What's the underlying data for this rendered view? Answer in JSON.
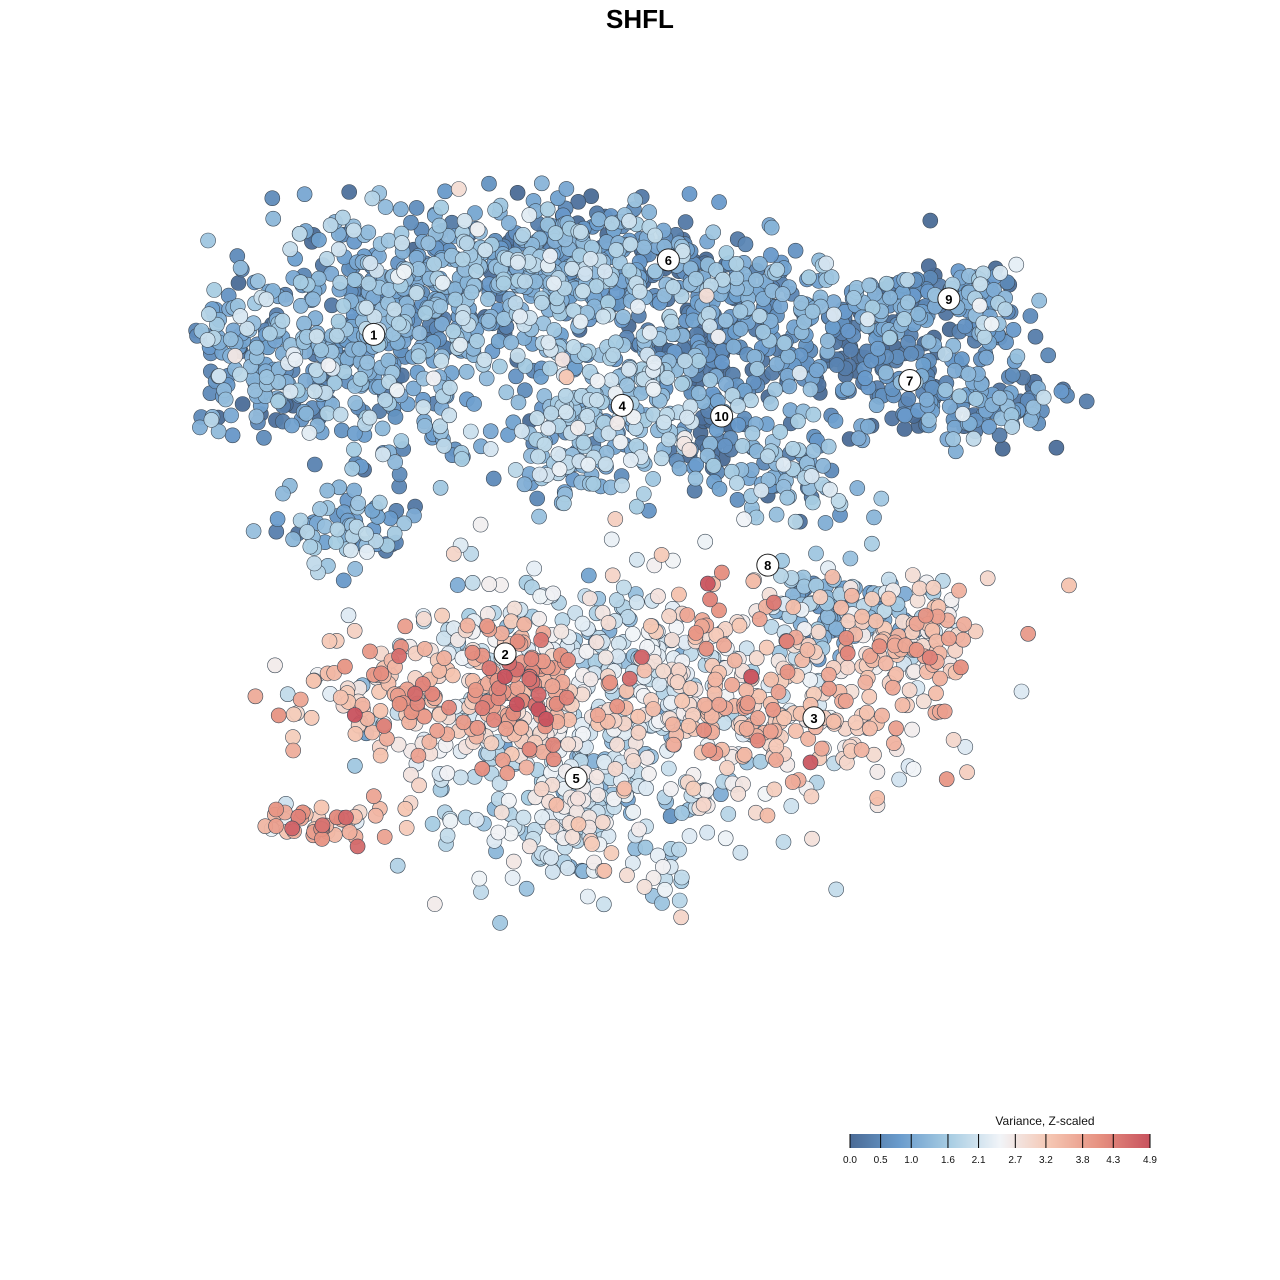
{
  "chart_data": {
    "type": "scatter",
    "title": "SHFL",
    "legend": {
      "title": "Variance, Z-scaled",
      "placement": "bottom-right",
      "ticks": [
        "0.0",
        "0.5",
        "1.0",
        "1.6",
        "2.1",
        "2.7",
        "3.2",
        "3.8",
        "4.3",
        "4.9"
      ],
      "range": [
        0.0,
        4.9
      ]
    },
    "colors": {
      "scale": [
        "#4a6b96",
        "#6a9ccd",
        "#a8cde3",
        "#f1f4f8",
        "#f5c6b2",
        "#e69080",
        "#c8525e"
      ]
    },
    "clusters": [
      {
        "label": "1",
        "x": -7.5,
        "y": 7.2,
        "mean": 1.1
      },
      {
        "label": "2",
        "x": -3.8,
        "y": -1.8,
        "mean": 3.4
      },
      {
        "label": "3",
        "x": 4.9,
        "y": -3.6,
        "mean": 3.1
      },
      {
        "label": "4",
        "x": -0.5,
        "y": 5.2,
        "mean": 1.4
      },
      {
        "label": "5",
        "x": -1.8,
        "y": -5.3,
        "mean": 2.1
      },
      {
        "label": "6",
        "x": 0.8,
        "y": 9.3,
        "mean": 0.9
      },
      {
        "label": "7",
        "x": 7.6,
        "y": 5.9,
        "mean": 0.6
      },
      {
        "label": "8",
        "x": 3.6,
        "y": 0.7,
        "mean": 1.2
      },
      {
        "label": "9",
        "x": 8.7,
        "y": 8.2,
        "mean": 0.8
      },
      {
        "label": "10",
        "x": 2.3,
        "y": 4.9,
        "mean": 0.3
      }
    ],
    "hotspots": [
      {
        "x": 2.4,
        "y": 0.0,
        "value": 4.6
      },
      {
        "x": -3.3,
        "y": -2.5,
        "value": 4.2
      }
    ],
    "grid": false
  }
}
